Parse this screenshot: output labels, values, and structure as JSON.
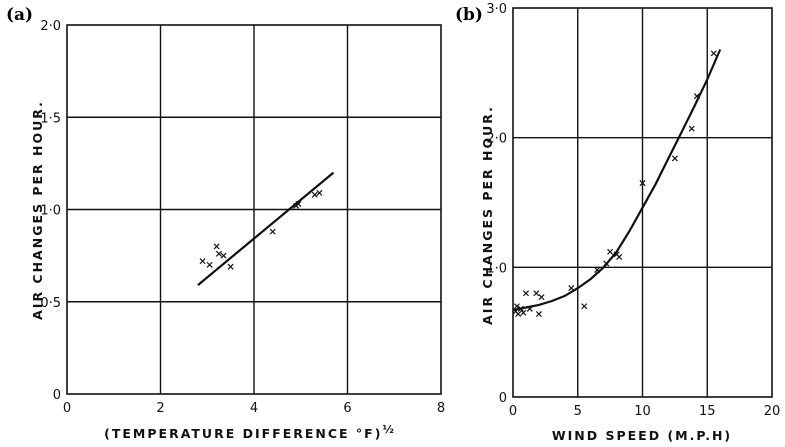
{
  "chart_data": [
    {
      "panel_label": "(a)",
      "type": "scatter",
      "xlabel": "(TEMPERATURE DIFFERENCE °F)",
      "xlabel_exponent": "½",
      "ylabel": "AIR CHANGES PER HOUR.",
      "xlim": [
        0,
        8
      ],
      "ylim": [
        0,
        2.0
      ],
      "x_ticks": [
        "0",
        "2",
        "4",
        "6",
        "8"
      ],
      "y_ticks": [
        "0",
        "0·5",
        "1·0",
        "1·5",
        "2·0"
      ],
      "grid": true,
      "points": [
        {
          "x": 2.9,
          "y": 0.72
        },
        {
          "x": 3.05,
          "y": 0.7
        },
        {
          "x": 3.2,
          "y": 0.8
        },
        {
          "x": 3.25,
          "y": 0.76
        },
        {
          "x": 3.35,
          "y": 0.75
        },
        {
          "x": 3.5,
          "y": 0.69
        },
        {
          "x": 4.4,
          "y": 0.88
        },
        {
          "x": 4.9,
          "y": 1.02
        },
        {
          "x": 4.95,
          "y": 1.03
        },
        {
          "x": 5.3,
          "y": 1.08
        },
        {
          "x": 5.4,
          "y": 1.09
        }
      ],
      "fit_line": {
        "x": [
          2.8,
          5.7
        ],
        "y": [
          0.59,
          1.2
        ]
      }
    },
    {
      "panel_label": "(b)",
      "type": "scatter",
      "xlabel": "WIND SPEED (M.P.H)",
      "ylabel": "AIR CHANGES PER HOUR.",
      "xlim": [
        0,
        20
      ],
      "ylim": [
        0,
        3.0
      ],
      "x_ticks": [
        "0",
        "5",
        "10",
        "15",
        "20"
      ],
      "y_ticks": [
        "0",
        "1·0",
        "2·0",
        "3·0"
      ],
      "grid": true,
      "points": [
        {
          "x": 0.2,
          "y": 0.66
        },
        {
          "x": 0.3,
          "y": 0.7
        },
        {
          "x": 0.4,
          "y": 0.64
        },
        {
          "x": 0.6,
          "y": 0.68
        },
        {
          "x": 0.8,
          "y": 0.65
        },
        {
          "x": 1.0,
          "y": 0.8
        },
        {
          "x": 1.3,
          "y": 0.68
        },
        {
          "x": 1.8,
          "y": 0.8
        },
        {
          "x": 2.0,
          "y": 0.64
        },
        {
          "x": 2.2,
          "y": 0.77
        },
        {
          "x": 4.5,
          "y": 0.84
        },
        {
          "x": 5.5,
          "y": 0.7
        },
        {
          "x": 6.5,
          "y": 0.98
        },
        {
          "x": 7.2,
          "y": 1.03
        },
        {
          "x": 7.5,
          "y": 1.12
        },
        {
          "x": 8.0,
          "y": 1.1
        },
        {
          "x": 8.2,
          "y": 1.08
        },
        {
          "x": 10.0,
          "y": 1.65
        },
        {
          "x": 12.5,
          "y": 1.84
        },
        {
          "x": 13.8,
          "y": 2.07
        },
        {
          "x": 14.2,
          "y": 2.32
        },
        {
          "x": 15.5,
          "y": 2.65
        }
      ],
      "fit_curve": {
        "x": [
          0,
          1,
          2,
          3,
          4,
          5,
          6,
          7,
          8,
          9,
          10,
          11,
          12,
          13,
          14,
          15,
          16
        ],
        "y": [
          0.67,
          0.69,
          0.71,
          0.74,
          0.78,
          0.84,
          0.91,
          1.0,
          1.12,
          1.28,
          1.46,
          1.64,
          1.84,
          2.04,
          2.24,
          2.45,
          2.68
        ]
      }
    }
  ]
}
